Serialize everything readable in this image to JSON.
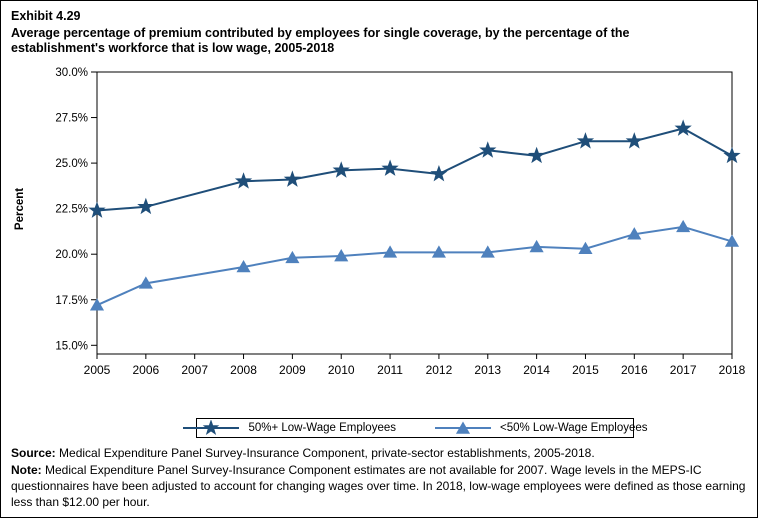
{
  "exhibit": {
    "label": "Exhibit 4.29",
    "title": "Average percentage of premium contributed by employees for single coverage, by the percentage of the establishment's workforce that is low wage, 2005-2018"
  },
  "chart_data": {
    "type": "line",
    "x": [
      2005,
      2006,
      2007,
      2008,
      2009,
      2010,
      2011,
      2012,
      2013,
      2014,
      2015,
      2016,
      2017,
      2018
    ],
    "series": [
      {
        "name": "50%+ Low-Wage Employees",
        "marker": "star",
        "color": "#1F4E79",
        "values": [
          22.4,
          22.6,
          null,
          24.0,
          24.1,
          24.6,
          24.7,
          24.4,
          25.7,
          25.4,
          26.2,
          26.2,
          26.9,
          25.4
        ]
      },
      {
        "name": "<50% Low-Wage Employees",
        "marker": "triangle",
        "color": "#4F81BD",
        "values": [
          17.2,
          18.4,
          null,
          19.3,
          19.8,
          19.9,
          20.1,
          20.1,
          20.1,
          20.4,
          20.3,
          21.1,
          21.5,
          20.7
        ]
      }
    ],
    "xlabel": "",
    "ylabel": "Percent",
    "ylim": [
      15.0,
      30.0
    ],
    "ytick_step": 2.5,
    "ytick_labels": [
      "30.0%",
      "27.5%",
      "25.0%",
      "22.5%",
      "20.0%",
      "17.5%",
      "15.0%"
    ],
    "grid": "off",
    "legend_position": "bottom",
    "note_gap_year": 2007
  },
  "footer": {
    "source_label": "Source:",
    "source_text": "Medical Expenditure Panel Survey-Insurance Component, private-sector establishments, 2005-2018.",
    "note_label": "Note:",
    "note_text": "Medical Expenditure Panel Survey-Insurance Component estimates are not available for 2007. Wage levels in the MEPS-IC questionnaires have been adjusted to account for changing wages over time.  In 2018, low-wage employees were defined as those earning less than $12.00 per hour."
  }
}
